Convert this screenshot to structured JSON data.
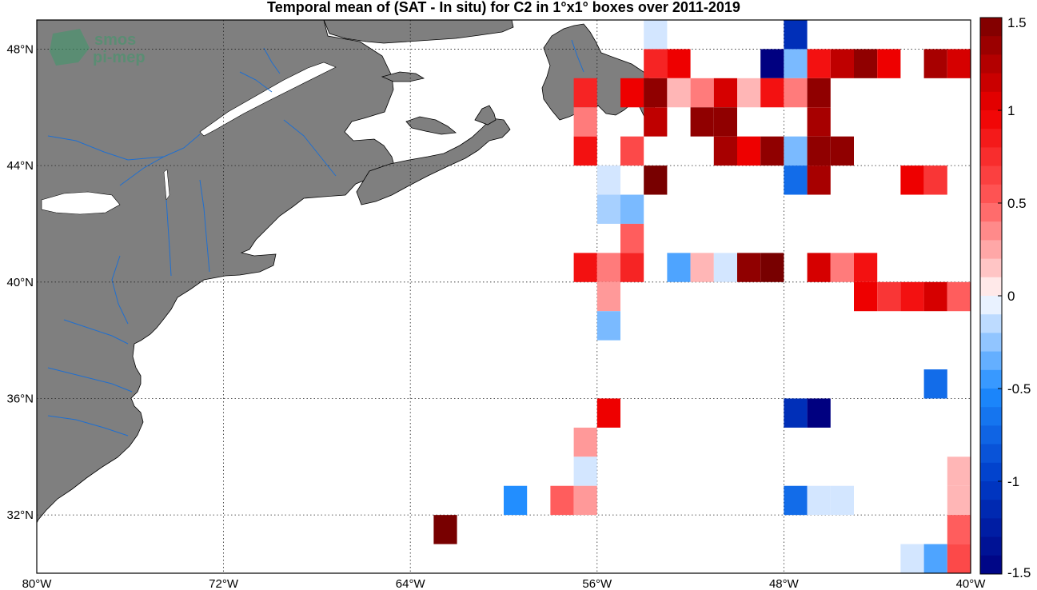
{
  "title": "Temporal mean of (SAT - In situ) for C2 in 1°x1° boxes over 2011-2019",
  "watermark": {
    "line1": "smos",
    "line2": "pi-mep"
  },
  "map": {
    "projection": "equirectangular",
    "lon_range": [
      -80,
      -40
    ],
    "lat_range": [
      30,
      49
    ],
    "land_color": "#7f7f7f",
    "river_color": "#1f6fd0",
    "grid": "dotted",
    "lon_ticks": [
      {
        "value": -80,
        "label": "80°W"
      },
      {
        "value": -72,
        "label": "72°W"
      },
      {
        "value": -64,
        "label": "64°W"
      },
      {
        "value": -56,
        "label": "56°W"
      },
      {
        "value": -48,
        "label": "48°W"
      },
      {
        "value": -40,
        "label": "40°W"
      }
    ],
    "lat_ticks": [
      {
        "value": 32,
        "label": "32°N"
      },
      {
        "value": 36,
        "label": "36°N"
      },
      {
        "value": 40,
        "label": "40°N"
      },
      {
        "value": 44,
        "label": "44°N"
      },
      {
        "value": 48,
        "label": "48°N"
      }
    ]
  },
  "colorbar": {
    "range": [
      -1.5,
      1.5
    ],
    "step": 0.1,
    "ticks": [
      {
        "value": 1.5,
        "label": "1.5"
      },
      {
        "value": 1.0,
        "label": "1"
      },
      {
        "value": 0.5,
        "label": "0.5"
      },
      {
        "value": 0.0,
        "label": "0"
      },
      {
        "value": -0.5,
        "label": "-0.5"
      },
      {
        "value": -1.0,
        "label": "-1"
      },
      {
        "value": -1.5,
        "label": "-1.5"
      }
    ]
  },
  "chart_data": {
    "type": "heatmap",
    "title": "Temporal mean of (SAT - In situ) for C2 in 1°x1° boxes over 2011-2019",
    "xlabel": "",
    "ylabel": "",
    "xlim": [
      -80,
      -40
    ],
    "ylim": [
      30,
      49
    ],
    "cell_size_deg": 1,
    "value_range": [
      -1.5,
      1.5
    ],
    "cells": [
      {
        "lon": -54,
        "lat": 48,
        "value": -0.1
      },
      {
        "lon": -48,
        "lat": 48,
        "value": -1.1
      },
      {
        "lon": -54,
        "lat": 47,
        "value": 0.8
      },
      {
        "lon": -53,
        "lat": 47,
        "value": 1.0
      },
      {
        "lon": -49,
        "lat": 47,
        "value": -1.5
      },
      {
        "lon": -48,
        "lat": 47,
        "value": -0.3
      },
      {
        "lon": -47,
        "lat": 47,
        "value": 0.9
      },
      {
        "lon": -46,
        "lat": 47,
        "value": 1.2
      },
      {
        "lon": -45,
        "lat": 47,
        "value": 1.4
      },
      {
        "lon": -44,
        "lat": 47,
        "value": 1.0
      },
      {
        "lon": -42,
        "lat": 47,
        "value": 1.3
      },
      {
        "lon": -41,
        "lat": 47,
        "value": 1.1
      },
      {
        "lon": -57,
        "lat": 46,
        "value": 0.8
      },
      {
        "lon": -55,
        "lat": 46,
        "value": 1.0
      },
      {
        "lon": -54,
        "lat": 46,
        "value": 1.4
      },
      {
        "lon": -53,
        "lat": 46,
        "value": 0.2
      },
      {
        "lon": -52,
        "lat": 46,
        "value": 0.4
      },
      {
        "lon": -51,
        "lat": 46,
        "value": 1.1
      },
      {
        "lon": -50,
        "lat": 46,
        "value": 0.2
      },
      {
        "lon": -49,
        "lat": 46,
        "value": 0.9
      },
      {
        "lon": -48,
        "lat": 46,
        "value": 0.4
      },
      {
        "lon": -47,
        "lat": 46,
        "value": 1.4
      },
      {
        "lon": -57,
        "lat": 45,
        "value": 0.4
      },
      {
        "lon": -54,
        "lat": 45,
        "value": 1.2
      },
      {
        "lon": -52,
        "lat": 45,
        "value": 1.4
      },
      {
        "lon": -51,
        "lat": 45,
        "value": 1.4
      },
      {
        "lon": -47,
        "lat": 45,
        "value": 1.3
      },
      {
        "lon": -57,
        "lat": 44,
        "value": 0.9
      },
      {
        "lon": -55,
        "lat": 44,
        "value": 0.6
      },
      {
        "lon": -51,
        "lat": 44,
        "value": 1.3
      },
      {
        "lon": -50,
        "lat": 44,
        "value": 1.0
      },
      {
        "lon": -49,
        "lat": 44,
        "value": 1.4
      },
      {
        "lon": -48,
        "lat": 44,
        "value": -0.3
      },
      {
        "lon": -47,
        "lat": 44,
        "value": 1.4
      },
      {
        "lon": -46,
        "lat": 44,
        "value": 1.4
      },
      {
        "lon": -56,
        "lat": 43,
        "value": -0.1
      },
      {
        "lon": -54,
        "lat": 43,
        "value": 1.5
      },
      {
        "lon": -48,
        "lat": 43,
        "value": -0.7
      },
      {
        "lon": -47,
        "lat": 43,
        "value": 1.3
      },
      {
        "lon": -43,
        "lat": 43,
        "value": 1.0
      },
      {
        "lon": -42,
        "lat": 43,
        "value": 0.7
      },
      {
        "lon": -56,
        "lat": 42,
        "value": -0.2
      },
      {
        "lon": -55,
        "lat": 42,
        "value": -0.3
      },
      {
        "lon": -55,
        "lat": 41,
        "value": 0.5
      },
      {
        "lon": -57,
        "lat": 40,
        "value": 0.9
      },
      {
        "lon": -56,
        "lat": 40,
        "value": 0.4
      },
      {
        "lon": -55,
        "lat": 40,
        "value": 0.8
      },
      {
        "lon": -53,
        "lat": 40,
        "value": -0.4
      },
      {
        "lon": -52,
        "lat": 40,
        "value": 0.2
      },
      {
        "lon": -51,
        "lat": 40,
        "value": -0.1
      },
      {
        "lon": -50,
        "lat": 40,
        "value": 1.4
      },
      {
        "lon": -49,
        "lat": 40,
        "value": 1.5
      },
      {
        "lon": -47,
        "lat": 40,
        "value": 1.1
      },
      {
        "lon": -46,
        "lat": 40,
        "value": 0.4
      },
      {
        "lon": -45,
        "lat": 40,
        "value": 0.9
      },
      {
        "lon": -56,
        "lat": 39,
        "value": 0.3
      },
      {
        "lon": -45,
        "lat": 39,
        "value": 1.0
      },
      {
        "lon": -44,
        "lat": 39,
        "value": 0.7
      },
      {
        "lon": -43,
        "lat": 39,
        "value": 0.9
      },
      {
        "lon": -42,
        "lat": 39,
        "value": 1.1
      },
      {
        "lon": -41,
        "lat": 39,
        "value": 0.5
      },
      {
        "lon": -56,
        "lat": 38,
        "value": -0.3
      },
      {
        "lon": -42,
        "lat": 36,
        "value": -0.7
      },
      {
        "lon": -56,
        "lat": 35,
        "value": 1.0
      },
      {
        "lon": -48,
        "lat": 35,
        "value": -1.1
      },
      {
        "lon": -47,
        "lat": 35,
        "value": -1.5
      },
      {
        "lon": -57,
        "lat": 34,
        "value": 0.3
      },
      {
        "lon": -57,
        "lat": 33,
        "value": -0.1
      },
      {
        "lon": -41,
        "lat": 33,
        "value": 0.2
      },
      {
        "lon": -60,
        "lat": 32,
        "value": -0.5
      },
      {
        "lon": -58,
        "lat": 32,
        "value": 0.5
      },
      {
        "lon": -57,
        "lat": 32,
        "value": 0.3
      },
      {
        "lon": -48,
        "lat": 32,
        "value": -0.7
      },
      {
        "lon": -47,
        "lat": 32,
        "value": -0.1
      },
      {
        "lon": -46,
        "lat": 32,
        "value": -0.1
      },
      {
        "lon": -41,
        "lat": 32,
        "value": 0.2
      },
      {
        "lon": -63,
        "lat": 31,
        "value": 1.5
      },
      {
        "lon": -41,
        "lat": 31,
        "value": 0.5
      },
      {
        "lon": -43,
        "lat": 30,
        "value": -0.1
      },
      {
        "lon": -42,
        "lat": 30,
        "value": -0.4
      },
      {
        "lon": -41,
        "lat": 30,
        "value": 0.6
      }
    ]
  }
}
